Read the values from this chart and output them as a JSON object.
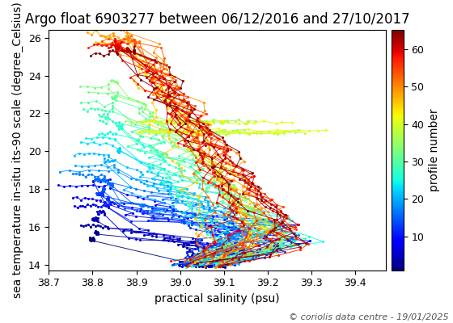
{
  "title": "Argo float 6903277 between 06/12/2016 and 27/10/2017",
  "xlabel": "practical salinity (psu)",
  "ylabel": "sea temperature in-situ its-90 scale (degree_Celsius)",
  "colorbar_label": "profile number",
  "copyright": "© coriolis data centre - 19/01/2025",
  "xlim": [
    38.7,
    39.47
  ],
  "ylim": [
    13.7,
    26.4
  ],
  "colormap": "jet",
  "n_profiles": 65,
  "cbar_ticks": [
    10,
    20,
    30,
    40,
    50,
    60
  ],
  "title_fontsize": 12,
  "label_fontsize": 10,
  "tick_fontsize": 9,
  "copyright_fontsize": 8
}
